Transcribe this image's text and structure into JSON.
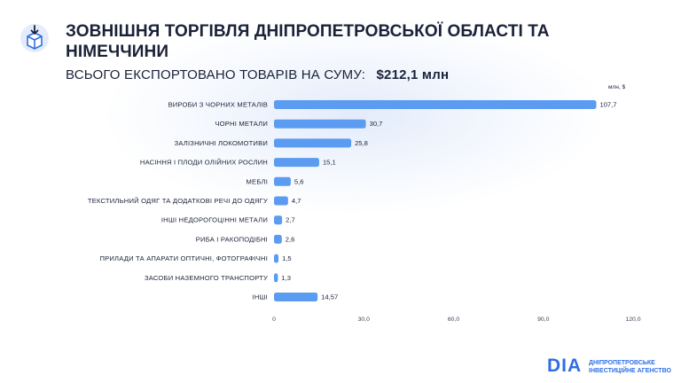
{
  "header": {
    "title": "ЗОВНІШНЯ ТОРГІВЛЯ ДНІПРОПЕТРОВСЬКОЇ ОБЛАСТІ ТА НІМЕЧЧИНИ",
    "subtitle_label": "ВСЬОГО ЕКСПОРТОВАНО ТОВАРІВ НА СУМУ:",
    "subtitle_value": "$212,1 млн"
  },
  "brand": {
    "logo_text": "DIA",
    "agency_line1": "ДНІПРОПЕТРОВСЬКЕ",
    "agency_line2": "ІНВЕСТИЦІЙНЕ АГЕНСТВО",
    "accent": "#2f6fe4",
    "bar_color": "#5b9cf2"
  },
  "chart_data": {
    "type": "bar",
    "orientation": "horizontal",
    "unit_label": "млн, $",
    "categories": [
      "ВИРОБИ З ЧОРНИХ МЕТАЛІВ",
      "ЧОРНІ МЕТАЛИ",
      "ЗАЛІЗНИЧНІ ЛОКОМОТИВИ",
      "НАСІННЯ І ПЛОДИ ОЛІЙНИХ РОСЛИН",
      "МЕБЛІ",
      "ТЕКСТИЛЬНИЙ ОДЯГ ТА ДОДАТКОВІ РЕЧІ ДО ОДЯГУ",
      "ІНШІ НЕДОРОГОЦІННІ МЕТАЛИ",
      "РИБА І РАКОПОДІБНІ",
      "ПРИЛАДИ ТА АПАРАТИ ОПТИЧНІ, ФОТОГРАФІЧНІ",
      "ЗАСОБИ НАЗЕМНОГО ТРАНСПОРТУ",
      "ІНШІ"
    ],
    "values": [
      107.7,
      30.7,
      25.8,
      15.1,
      5.6,
      4.7,
      2.7,
      2.6,
      1.5,
      1.3,
      14.57
    ],
    "value_labels": [
      "107,7",
      "30,7",
      "25,8",
      "15,1",
      "5,6",
      "4,7",
      "2,7",
      "2,6",
      "1,5",
      "1,3",
      "14,57"
    ],
    "xlim": [
      0,
      120
    ],
    "x_ticks": [
      0,
      30,
      60,
      90,
      120
    ],
    "x_tick_labels": [
      "0",
      "30,0",
      "60,0",
      "90,0",
      "120,0"
    ],
    "grid": false,
    "legend": "none"
  }
}
